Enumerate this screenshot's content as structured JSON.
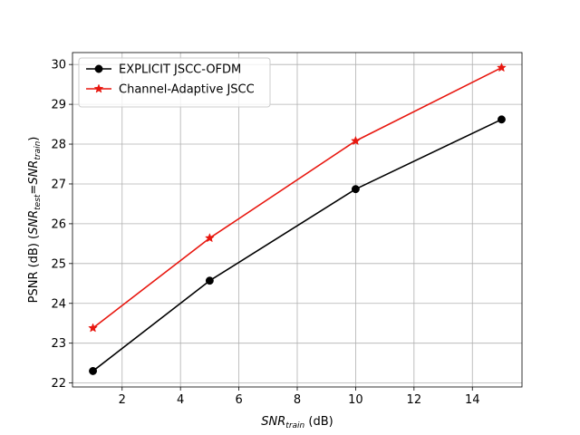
{
  "chart_data": {
    "type": "line",
    "xlabel": "SNR_train (dB)",
    "xlabel_parts": {
      "main": "SNR",
      "sub": "train",
      "suffix": " (dB)"
    },
    "ylabel": "PSNR (dB) (SNR_test = SNR_train)",
    "ylabel_parts": {
      "prefix": "PSNR (dB) (",
      "snr1": "SNR",
      "sub1": "test",
      "eq": "=",
      "snr2": "SNR",
      "sub2": "train",
      "suffix": ")"
    },
    "xlim": [
      0.3,
      15.7
    ],
    "ylim": [
      21.9,
      30.3
    ],
    "xticks": [
      2,
      4,
      6,
      8,
      10,
      12,
      14
    ],
    "yticks": [
      22,
      23,
      24,
      25,
      26,
      27,
      28,
      29,
      30
    ],
    "grid": true,
    "legend_position": "top-left",
    "series": [
      {
        "name": "EXPLICIT JSCC-OFDM",
        "color": "#000000",
        "marker": "circle",
        "x": [
          1,
          5,
          10,
          15
        ],
        "y": [
          22.3,
          24.57,
          26.87,
          28.62
        ]
      },
      {
        "name": "Channel-Adaptive JSCC",
        "color": "#e8170f",
        "marker": "star",
        "x": [
          1,
          5,
          10,
          15
        ],
        "y": [
          23.38,
          25.64,
          28.08,
          29.92
        ]
      }
    ]
  }
}
